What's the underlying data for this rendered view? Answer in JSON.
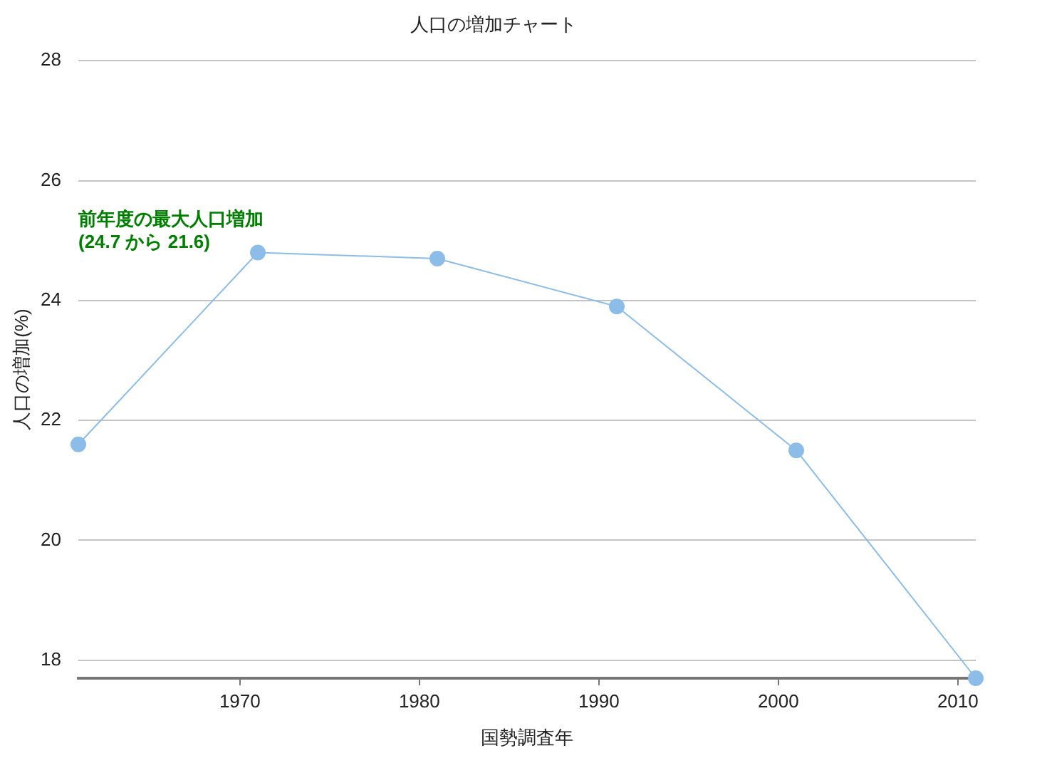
{
  "chart_data": {
    "type": "line",
    "title": "人口の増加チャート",
    "xlabel": "国勢調査年",
    "ylabel": "人口の増加(%)",
    "x": [
      1961,
      1971,
      1981,
      1991,
      2001,
      2011
    ],
    "series": [
      {
        "color": "#8bbde8",
        "values": [
          21.6,
          24.8,
          24.7,
          23.9,
          21.5,
          17.7
        ]
      }
    ],
    "xlim": [
      1961,
      2011
    ],
    "xticks": [
      1970,
      1980,
      1990,
      2000,
      2010
    ],
    "ylim": [
      17.7,
      28
    ],
    "yticks": [
      18,
      20,
      22,
      24,
      26,
      28
    ],
    "grid": "y",
    "legend": false,
    "marker": "circle",
    "line_style": "solid",
    "annotations": [
      "前年度の最大人口増加\n(24.7 から 21.6)"
    ]
  }
}
